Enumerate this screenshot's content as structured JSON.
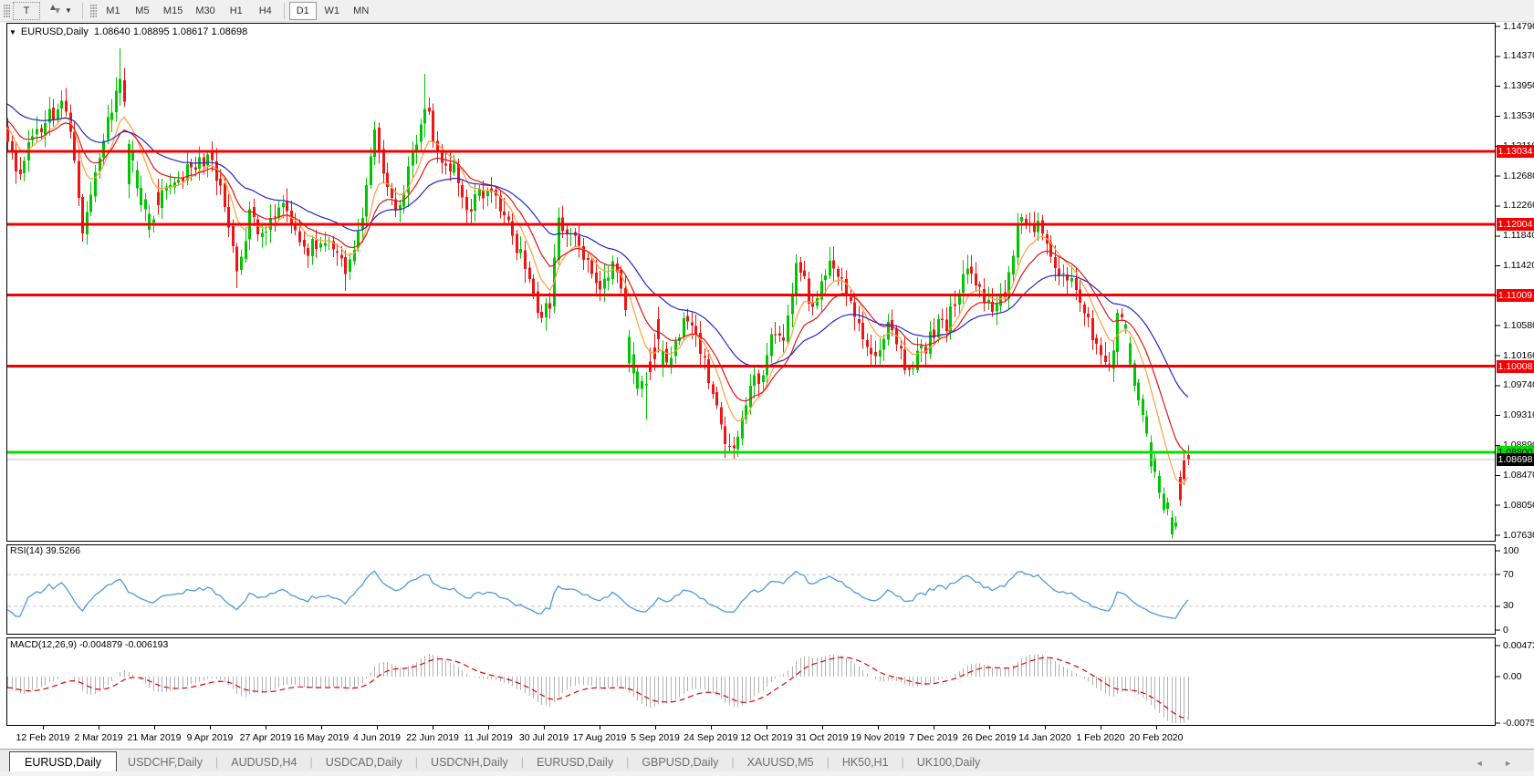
{
  "toolbar": {
    "text_tool_label": "T",
    "timeframes": [
      "M1",
      "M5",
      "M15",
      "M30",
      "H1",
      "H4",
      "D1",
      "W1",
      "MN"
    ],
    "active_timeframe": "D1"
  },
  "chart_title": {
    "symbol_text": "EURUSD,Daily",
    "ohlc_text": "1.08640 1.08895 1.08617 1.08698"
  },
  "chart_data": {
    "type": "candlestick",
    "title": "EURUSD,Daily",
    "ohlc": {
      "open": 1.0864,
      "high": 1.08895,
      "low": 1.08617,
      "close": 1.08698
    },
    "y_ticks": [
      "1.14790",
      "1.14370",
      "1.13950",
      "1.13530",
      "1.13110",
      "1.12680",
      "1.12260",
      "1.11840",
      "1.11420",
      "1.11000",
      "1.10580",
      "1.10160",
      "1.09740",
      "1.09310",
      "1.08890",
      "1.08470",
      "1.08050",
      "1.07630"
    ],
    "x_labels": [
      "12 Feb 2019",
      "2 Mar 2019",
      "21 Mar 2019",
      "9 Apr 2019",
      "27 Apr 2019",
      "16 May 2019",
      "4 Jun 2019",
      "22 Jun 2019",
      "11 Jul 2019",
      "30 Jul 2019",
      "17 Aug 2019",
      "5 Sep 2019",
      "24 Sep 2019",
      "12 Oct 2019",
      "31 Oct 2019",
      "19 Nov 2019",
      "7 Dec 2019",
      "26 Dec 2019",
      "14 Jan 2020",
      "1 Feb 2020",
      "20 Feb 2020"
    ],
    "hlines": [
      {
        "price": 1.13034,
        "label": "1.13034",
        "color": "#f50000",
        "kind": "resistance"
      },
      {
        "price": 1.12004,
        "label": "1.12004",
        "color": "#f50000",
        "kind": "resistance"
      },
      {
        "price": 1.11009,
        "label": "1.11009",
        "color": "#f50000",
        "kind": "resistance"
      },
      {
        "price": 1.10008,
        "label": "1.10008",
        "color": "#f50000",
        "kind": "resistance"
      },
      {
        "price": 1.088,
        "label": "1.08800",
        "color": "#00e000",
        "kind": "support"
      }
    ],
    "current_price": {
      "price": 1.08698,
      "label": "1.08698"
    },
    "candles": {
      "count": 284,
      "up_color": "#00c600",
      "down_color": "#f01414",
      "anchors": [
        [
          0.0,
          1.1325
        ],
        [
          0.007,
          1.1268
        ],
        [
          0.015,
          1.1296
        ],
        [
          0.03,
          1.1342
        ],
        [
          0.045,
          1.1372
        ],
        [
          0.052,
          1.135
        ],
        [
          0.063,
          1.1196
        ],
        [
          0.071,
          1.1242
        ],
        [
          0.082,
          1.133
        ],
        [
          0.097,
          1.1408
        ],
        [
          0.104,
          1.1302
        ],
        [
          0.119,
          1.1222
        ],
        [
          0.127,
          1.1218
        ],
        [
          0.134,
          1.1252
        ],
        [
          0.153,
          1.1276
        ],
        [
          0.172,
          1.1298
        ],
        [
          0.186,
          1.1218
        ],
        [
          0.194,
          1.1136
        ],
        [
          0.205,
          1.1212
        ],
        [
          0.216,
          1.1186
        ],
        [
          0.231,
          1.1228
        ],
        [
          0.25,
          1.1162
        ],
        [
          0.269,
          1.1183
        ],
        [
          0.287,
          1.1128
        ],
        [
          0.302,
          1.1222
        ],
        [
          0.31,
          1.1336
        ],
        [
          0.328,
          1.1206
        ],
        [
          0.343,
          1.1292
        ],
        [
          0.354,
          1.1376
        ],
        [
          0.366,
          1.1288
        ],
        [
          0.377,
          1.1284
        ],
        [
          0.392,
          1.1208
        ],
        [
          0.399,
          1.1256
        ],
        [
          0.418,
          1.1222
        ],
        [
          0.437,
          1.1148
        ],
        [
          0.451,
          1.1072
        ],
        [
          0.459,
          1.1088
        ],
        [
          0.466,
          1.12
        ],
        [
          0.478,
          1.1178
        ],
        [
          0.485,
          1.1168
        ],
        [
          0.5,
          1.1098
        ],
        [
          0.515,
          1.1148
        ],
        [
          0.526,
          1.1058
        ],
        [
          0.534,
          1.0988
        ],
        [
          0.541,
          1.0968
        ],
        [
          0.552,
          1.1038
        ],
        [
          0.563,
          1.1005
        ],
        [
          0.571,
          1.1072
        ],
        [
          0.582,
          1.1038
        ],
        [
          0.59,
          1.1012
        ],
        [
          0.601,
          1.0938
        ],
        [
          0.608,
          1.0898
        ],
        [
          0.616,
          1.0892
        ],
        [
          0.627,
          1.0968
        ],
        [
          0.638,
          1.0988
        ],
        [
          0.645,
          1.1042
        ],
        [
          0.657,
          1.1028
        ],
        [
          0.668,
          1.1152
        ],
        [
          0.683,
          1.1078
        ],
        [
          0.698,
          1.1152
        ],
        [
          0.709,
          1.1122
        ],
        [
          0.716,
          1.1068
        ],
        [
          0.735,
          1.1018
        ],
        [
          0.746,
          1.1062
        ],
        [
          0.761,
          1.0998
        ],
        [
          0.776,
          1.1022
        ],
        [
          0.784,
          1.1052
        ],
        [
          0.795,
          1.1062
        ],
        [
          0.802,
          1.1092
        ],
        [
          0.81,
          1.1132
        ],
        [
          0.821,
          1.1118
        ],
        [
          0.832,
          1.1078
        ],
        [
          0.843,
          1.1092
        ],
        [
          0.858,
          1.1213
        ],
        [
          0.866,
          1.12
        ],
        [
          0.873,
          1.1196
        ],
        [
          0.888,
          1.1121
        ],
        [
          0.899,
          1.1132
        ],
        [
          0.907,
          1.109
        ],
        [
          0.925,
          1.1023
        ],
        [
          0.933,
          1.1005
        ],
        [
          0.941,
          1.1075
        ],
        [
          0.948,
          1.1055
        ],
        [
          0.955,
          1.0999
        ],
        [
          0.963,
          1.0946
        ],
        [
          0.97,
          1.088
        ],
        [
          0.977,
          1.0832
        ],
        [
          0.985,
          1.0795
        ],
        [
          0.989,
          1.078
        ],
        [
          0.993,
          1.0812
        ],
        [
          0.9966,
          1.0842
        ],
        [
          1.0,
          1.08698
        ]
      ],
      "spikes": [
        {
          "f": 0.097,
          "h": 1.1448
        },
        {
          "f": 0.354,
          "h": 1.1412
        },
        {
          "f": 0.063,
          "l": 1.1177
        },
        {
          "f": 0.194,
          "l": 1.1111
        },
        {
          "f": 0.287,
          "l": 1.1107
        },
        {
          "f": 0.541,
          "l": 1.0926
        },
        {
          "f": 0.616,
          "l": 1.0879
        },
        {
          "f": 0.989,
          "l": 1.0778
        }
      ],
      "inverted_zones": [
        [
          0.102,
          0.128
        ],
        [
          0.525,
          0.555
        ],
        [
          0.944,
          1.0
        ]
      ]
    },
    "ma_lines": [
      {
        "name": "ma-fast",
        "period": 8,
        "color": "#ff9f3c"
      },
      {
        "name": "ma-mid",
        "period": 15,
        "color": "#e01616"
      },
      {
        "name": "ma-slow",
        "period": 34,
        "color": "#2626cc"
      }
    ],
    "rsi": {
      "label": "RSI(14) 39.5266",
      "period": 14,
      "value": 39.5266,
      "ticks": [
        "100",
        "70",
        "30",
        "0"
      ],
      "levels": [
        70,
        30
      ],
      "color": "#4d9bdd"
    },
    "macd": {
      "label": "MACD(12,26,9) -0.004879 -0.006193",
      "fast": 12,
      "slow": 26,
      "signal_period": 9,
      "macd_value": -0.004879,
      "signal_value": -0.006193,
      "ticks": [
        "0.004738",
        "0.00",
        "-0.00758"
      ],
      "axis_max": 0.004738,
      "axis_min": -0.00758,
      "hist_color": "#b2b2b2",
      "signal_color": "#e00000"
    }
  },
  "tabs": {
    "items": [
      {
        "label": "EURUSD,Daily",
        "active": true
      },
      {
        "label": "USDCHF,Daily",
        "active": false
      },
      {
        "label": "AUDUSD,H4",
        "active": false
      },
      {
        "label": "USDCAD,Daily",
        "active": false
      },
      {
        "label": "USDCNH,Daily",
        "active": false
      },
      {
        "label": "EURUSD,Daily",
        "active": false
      },
      {
        "label": "GBPUSD,Daily",
        "active": false
      },
      {
        "label": "XAUUSD,M5",
        "active": false
      },
      {
        "label": "HK50,H1",
        "active": false
      },
      {
        "label": "UK100,Daily",
        "active": false
      }
    ],
    "scroll_left_icon": "◄",
    "scroll_right_icon": "►"
  }
}
